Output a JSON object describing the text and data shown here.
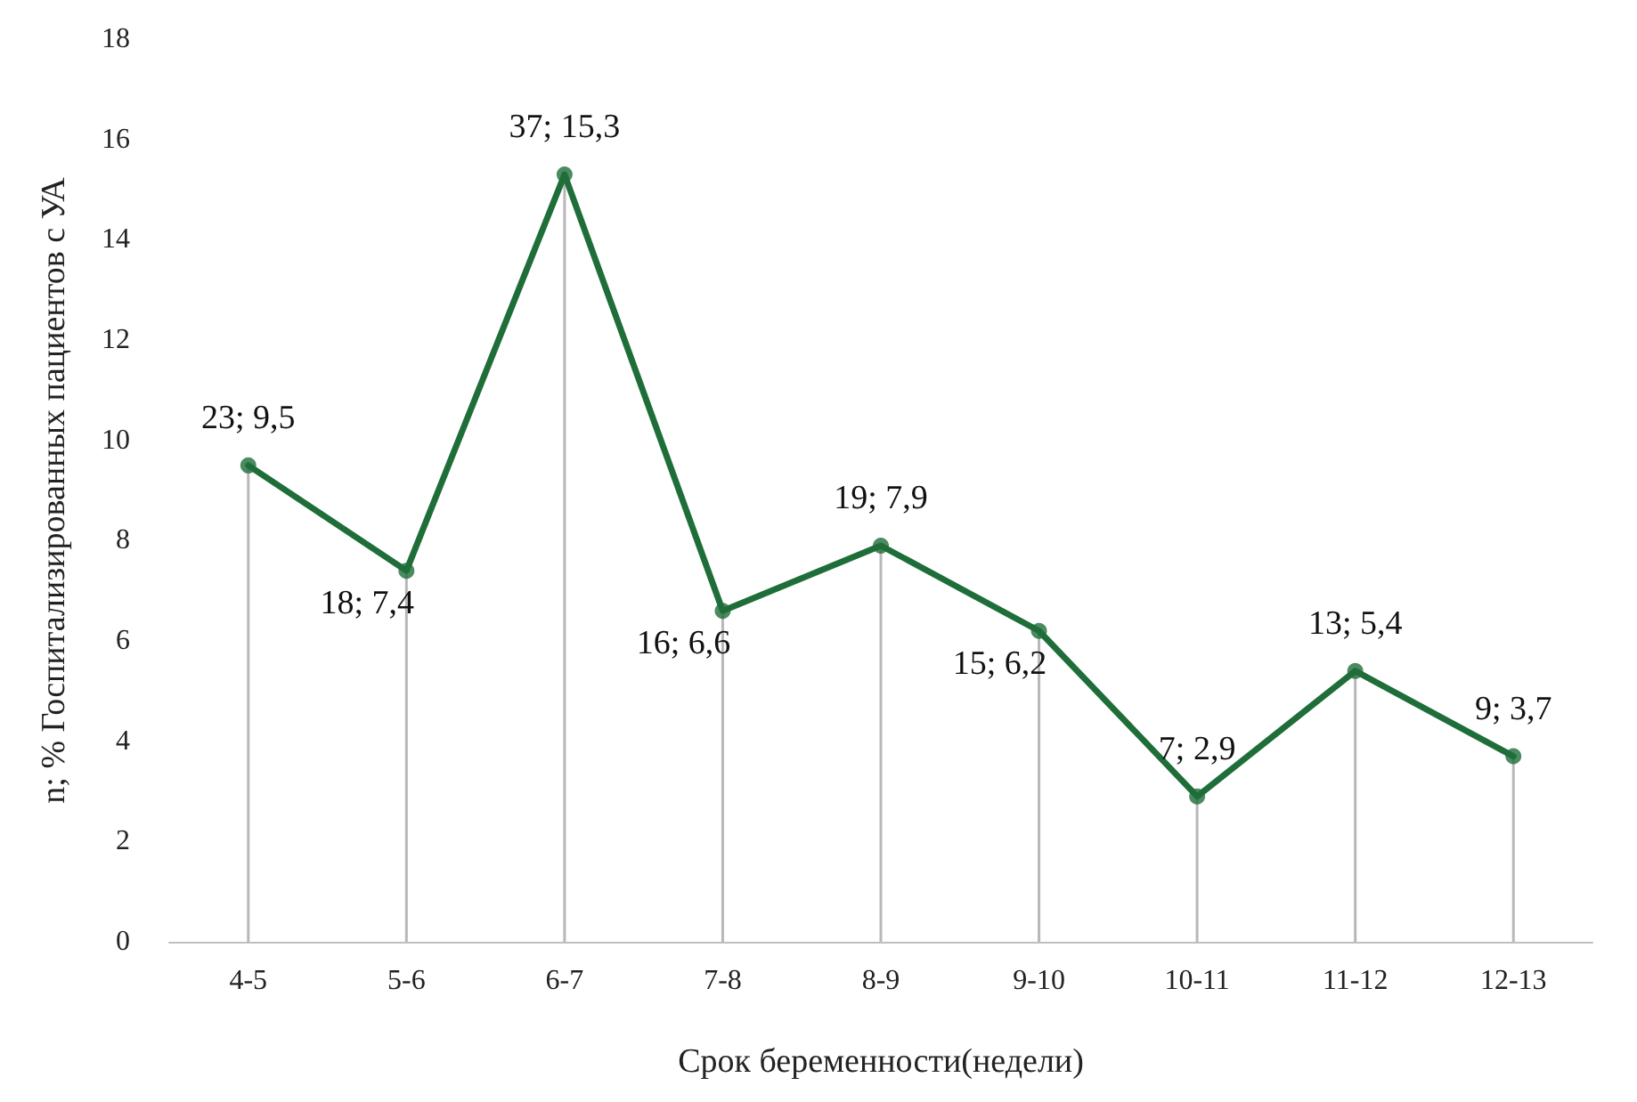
{
  "chart_data": {
    "type": "line",
    "xlabel": "Срок беременности(недели)",
    "ylabel": "n; % Госпитализированных пациентов с УА",
    "categories": [
      "4-5",
      "5-6",
      "6-7",
      "7-8",
      "8-9",
      "9-10",
      "10-11",
      "11-12",
      "12-13"
    ],
    "series": [
      {
        "marker": "none",
        "color": "#1f6e3a",
        "values": [
          9.5,
          7.4,
          15.3,
          6.6,
          7.9,
          6.2,
          2.9,
          5.4,
          3.7
        ],
        "value_labels": [
          "23; 9,5",
          "18; 7,4",
          "37; 15,3",
          "16; 6,6",
          "19; 7,9",
          "15; 6,2",
          "7; 2,9",
          "13; 5,4",
          "9; 3,7"
        ]
      },
      {
        "type": "lollipop",
        "marker": "circle",
        "color": "#1f6e3a",
        "values": [
          9.5,
          7.4,
          15.3,
          6.6,
          7.9,
          6.2,
          2.9,
          5.4,
          3.7
        ]
      }
    ],
    "ylim": [
      0,
      18
    ],
    "yticks": [
      0,
      2,
      4,
      6,
      8,
      10,
      12,
      14,
      16,
      18
    ],
    "grid": false,
    "line_style": "solid"
  }
}
